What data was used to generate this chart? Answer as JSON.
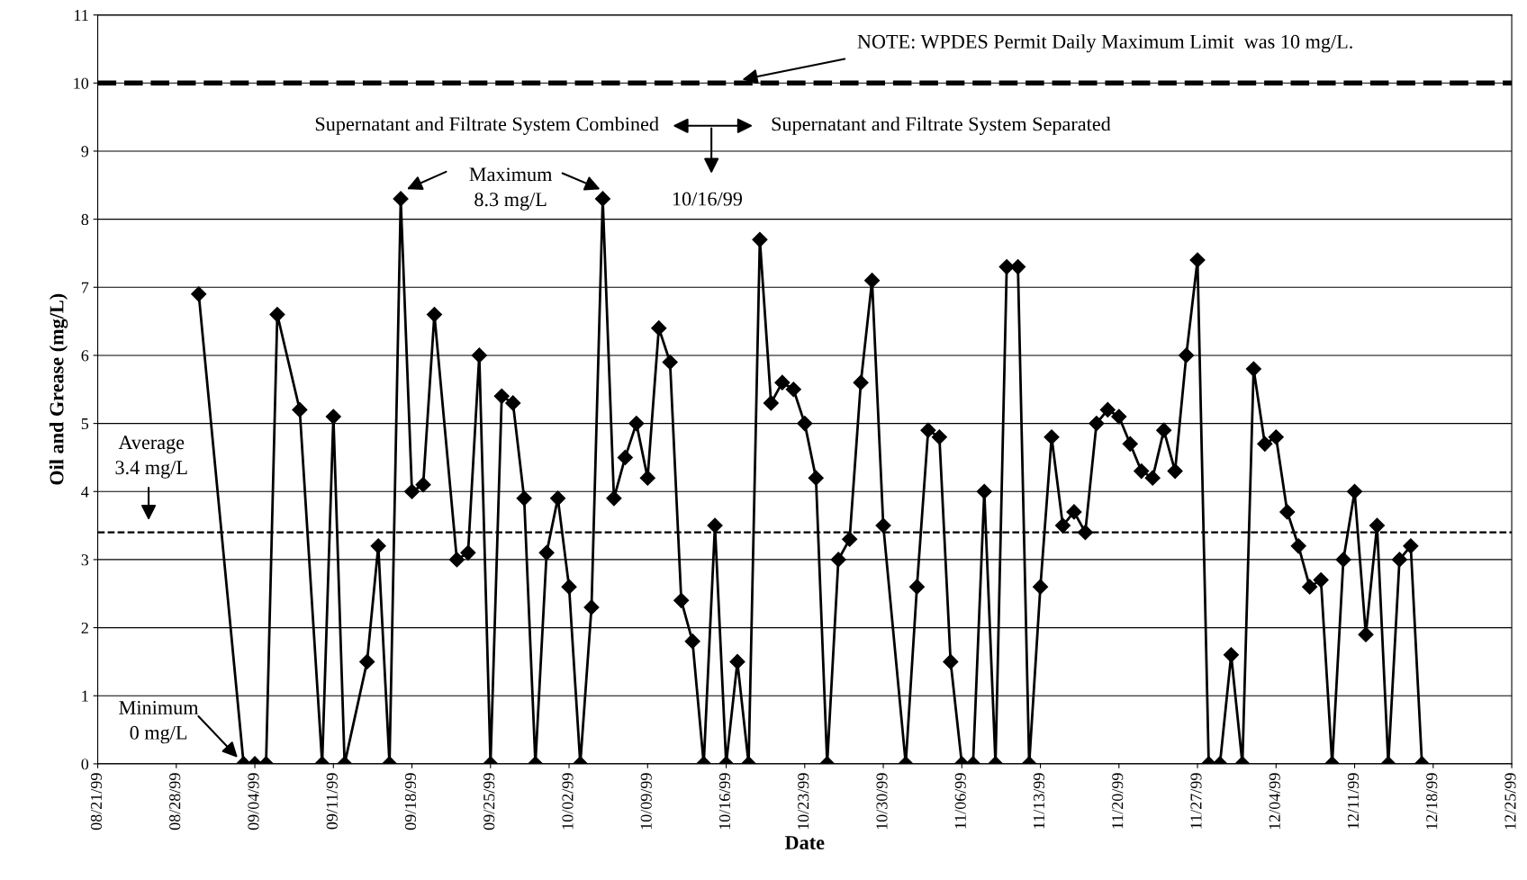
{
  "chart_data": {
    "type": "line",
    "xlabel": "Date",
    "ylabel": "Oil and Grease (mg/L)",
    "x": [
      "1999-08-30",
      "1999-09-03",
      "1999-09-04",
      "1999-09-05",
      "1999-09-06",
      "1999-09-08",
      "1999-09-10",
      "1999-09-11",
      "1999-09-12",
      "1999-09-14",
      "1999-09-15",
      "1999-09-16",
      "1999-09-17",
      "1999-09-18",
      "1999-09-19",
      "1999-09-20",
      "1999-09-22",
      "1999-09-23",
      "1999-09-24",
      "1999-09-25",
      "1999-09-26",
      "1999-09-27",
      "1999-09-28",
      "1999-09-29",
      "1999-09-30",
      "1999-10-01",
      "1999-10-02",
      "1999-10-03",
      "1999-10-04",
      "1999-10-05",
      "1999-10-06",
      "1999-10-07",
      "1999-10-08",
      "1999-10-09",
      "1999-10-10",
      "1999-10-11",
      "1999-10-12",
      "1999-10-13",
      "1999-10-14",
      "1999-10-15",
      "1999-10-16",
      "1999-10-17",
      "1999-10-18",
      "1999-10-19",
      "1999-10-20",
      "1999-10-21",
      "1999-10-22",
      "1999-10-23",
      "1999-10-24",
      "1999-10-25",
      "1999-10-26",
      "1999-10-27",
      "1999-10-28",
      "1999-10-29",
      "1999-10-30",
      "1999-11-01",
      "1999-11-02",
      "1999-11-03",
      "1999-11-04",
      "1999-11-05",
      "1999-11-06",
      "1999-11-07",
      "1999-11-08",
      "1999-11-09",
      "1999-11-10",
      "1999-11-11",
      "1999-11-12",
      "1999-11-13",
      "1999-11-14",
      "1999-11-15",
      "1999-11-16",
      "1999-11-17",
      "1999-11-18",
      "1999-11-19",
      "1999-11-20",
      "1999-11-21",
      "1999-11-22",
      "1999-11-23",
      "1999-11-24",
      "1999-11-25",
      "1999-11-26",
      "1999-11-27",
      "1999-11-28",
      "1999-11-29",
      "1999-11-30",
      "1999-12-01",
      "1999-12-02",
      "1999-12-03",
      "1999-12-04",
      "1999-12-05",
      "1999-12-06",
      "1999-12-07",
      "1999-12-08",
      "1999-12-09",
      "1999-12-10",
      "1999-12-11",
      "1999-12-12",
      "1999-12-13",
      "1999-12-14",
      "1999-12-15",
      "1999-12-16",
      "1999-12-17"
    ],
    "series": [
      {
        "color": "#000000",
        "values": [
          6.9,
          0,
          0,
          0,
          6.6,
          5.2,
          0,
          5.1,
          0,
          1.5,
          3.2,
          0,
          8.3,
          4.0,
          4.1,
          6.6,
          3.0,
          3.1,
          6.0,
          0,
          5.4,
          5.3,
          3.9,
          0,
          3.1,
          3.9,
          2.6,
          0,
          2.3,
          8.3,
          3.9,
          4.5,
          5.0,
          4.2,
          6.4,
          5.9,
          2.4,
          1.8,
          0,
          3.5,
          0,
          1.5,
          0,
          7.7,
          5.3,
          5.6,
          5.5,
          5.0,
          4.2,
          0,
          3.0,
          3.3,
          5.6,
          7.1,
          3.5,
          0,
          2.6,
          4.9,
          4.8,
          1.5,
          0,
          0,
          4.0,
          0,
          7.3,
          7.3,
          0,
          2.6,
          4.8,
          3.5,
          3.7,
          3.4,
          5.0,
          5.2,
          5.1,
          4.7,
          4.3,
          4.2,
          4.9,
          4.3,
          6.0,
          7.4,
          0,
          0,
          1.6,
          0,
          5.8,
          4.7,
          4.8,
          3.7,
          3.2,
          2.6,
          2.7,
          0,
          3.0,
          4.0,
          1.9,
          3.5,
          0,
          3.0,
          3.2,
          0
        ]
      }
    ],
    "marker": "diamond",
    "line_style": "solid",
    "xlim": [
      "1999-08-21",
      "1999-12-25"
    ],
    "xticks": [
      {
        "value": "1999-08-21",
        "label": "08/21/99"
      },
      {
        "value": "1999-08-28",
        "label": "08/28/99"
      },
      {
        "value": "1999-09-04",
        "label": "09/04/99"
      },
      {
        "value": "1999-09-11",
        "label": "09/11/99"
      },
      {
        "value": "1999-09-18",
        "label": "09/18/99"
      },
      {
        "value": "1999-09-25",
        "label": "09/25/99"
      },
      {
        "value": "1999-10-02",
        "label": "10/02/99"
      },
      {
        "value": "1999-10-09",
        "label": "10/09/99"
      },
      {
        "value": "1999-10-16",
        "label": "10/16/99"
      },
      {
        "value": "1999-10-23",
        "label": "10/23/99"
      },
      {
        "value": "1999-10-30",
        "label": "10/30/99"
      },
      {
        "value": "1999-11-06",
        "label": "11/06/99"
      },
      {
        "value": "1999-11-13",
        "label": "11/13/99"
      },
      {
        "value": "1999-11-20",
        "label": "11/20/99"
      },
      {
        "value": "1999-11-27",
        "label": "11/27/99"
      },
      {
        "value": "1999-12-04",
        "label": "12/04/99"
      },
      {
        "value": "1999-12-11",
        "label": "12/11/99"
      },
      {
        "value": "1999-12-18",
        "label": "12/18/99"
      },
      {
        "value": "1999-12-25",
        "label": "12/25/99"
      }
    ],
    "ylim": [
      0,
      11
    ],
    "yticks": [
      0,
      1,
      2,
      3,
      4,
      5,
      6,
      7,
      8,
      9,
      10,
      11
    ],
    "grid": "y",
    "ref_lines": [
      {
        "axis": "y",
        "value": 10,
        "label": null,
        "line_style": "dashed",
        "color": "#000000"
      },
      {
        "axis": "y",
        "value": 3.4,
        "label": "Average\n3.4 mg/L",
        "line_style": "dashed",
        "color": "#000000"
      }
    ],
    "annotations": [
      "NOTE: WPDES Permit Daily Maximum Limit  was 10 mg/L.",
      "Maximum\n8.3 mg/L",
      {
        "text": "Minimum\n0 mg/L",
        "x": "1999-09-03",
        "y": 0
      },
      "10/16/99",
      "Supernatant and Filtrate System Combined",
      "Supernatant and Filtrate System Separated"
    ]
  }
}
